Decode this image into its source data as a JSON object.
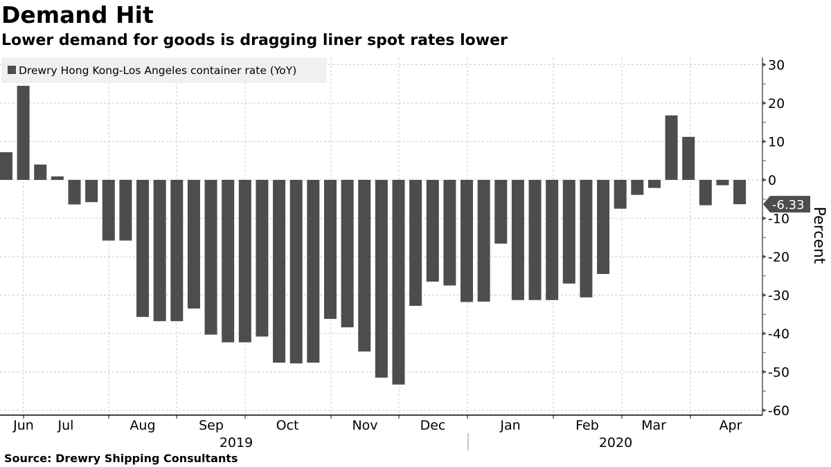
{
  "header": {
    "title": "Demand Hit",
    "subtitle": "Lower demand for goods is dragging liner spot rates lower"
  },
  "footer": {
    "source": "Source: Drewry Shipping Consultants"
  },
  "colors": {
    "bar": "#4d4d4d",
    "legend_bg": "#f0f0f0",
    "grid": "#c8c8c8",
    "axis": "#555555",
    "flag_bg": "#4d4d4d"
  },
  "chart_data": {
    "type": "bar",
    "title": "Demand Hit",
    "subtitle": "Lower demand for goods is dragging liner spot rates lower",
    "xlabel": "",
    "ylabel": "Percent",
    "ylim": [
      -60,
      30
    ],
    "y_ticks": [
      30,
      20,
      10,
      0,
      -10,
      -20,
      -30,
      -40,
      -50,
      -60
    ],
    "grid": true,
    "legend": {
      "position": "top-left",
      "entries": [
        "Drewry Hong Kong-Los Angeles container rate (YoY)"
      ]
    },
    "x_month_labels": [
      "Jun",
      "Jul",
      "Aug",
      "Sep",
      "Oct",
      "Nov",
      "Dec",
      "Jan",
      "Feb",
      "Mar",
      "Apr"
    ],
    "x_year_labels": [
      "2019",
      "2020"
    ],
    "last_value_label": "-6.33",
    "series": [
      {
        "name": "Drewry Hong Kong-Los Angeles container rate (YoY)",
        "values": [
          7.2,
          24.5,
          4.0,
          0.9,
          -6.4,
          -5.8,
          -15.8,
          -15.8,
          -35.7,
          -36.8,
          -36.8,
          -33.5,
          -40.3,
          -42.3,
          -42.3,
          -40.8,
          -47.6,
          -47.8,
          -47.6,
          -36.2,
          -38.4,
          -44.7,
          -51.5,
          -53.3,
          -32.8,
          -26.5,
          -27.5,
          -31.8,
          -31.7,
          -16.6,
          -31.3,
          -31.3,
          -31.3,
          -27.0,
          -30.6,
          -24.5,
          -7.5,
          -3.9,
          -2.1,
          16.8,
          11.2,
          -6.6,
          -1.4,
          -6.33
        ]
      }
    ]
  }
}
